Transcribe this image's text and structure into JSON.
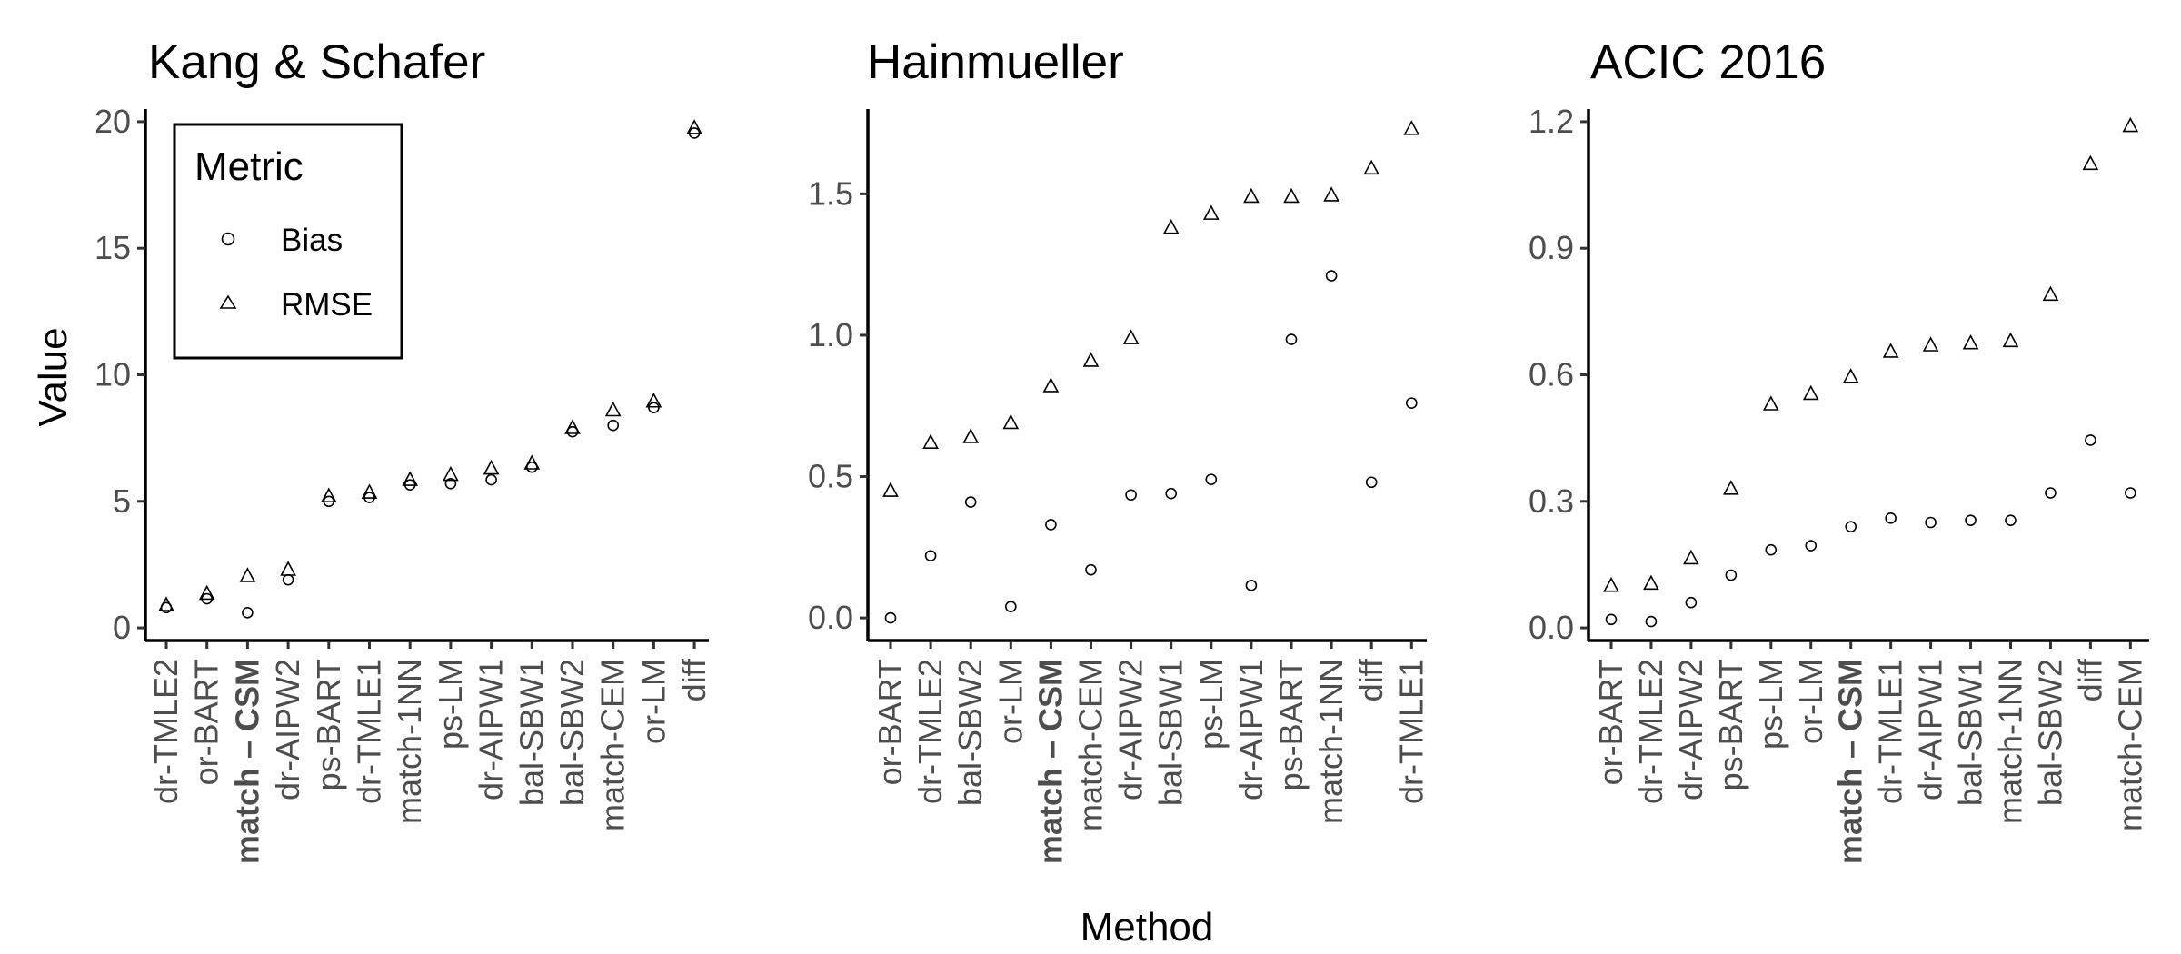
{
  "figure": {
    "xlabel": "Method",
    "ylabel": "Value",
    "legend": {
      "title": "Metric",
      "entries": [
        {
          "label": "Bias",
          "shape": "circle"
        },
        {
          "label": "RMSE",
          "shape": "triangle"
        }
      ],
      "placement": "inside top-left of first panel"
    }
  },
  "chart_data": [
    {
      "type": "scatter",
      "title": "Kang & Schafer",
      "xlabel": "Method",
      "ylabel": "Value",
      "ylim": [
        -0.5,
        20.5
      ],
      "yticks": [
        0,
        5,
        10,
        15,
        20
      ],
      "ytick_labels": [
        "0",
        "5",
        "10",
        "15",
        "20"
      ],
      "grid": false,
      "categories": [
        "dr-TMLE2",
        "or-BART",
        "match – CSM",
        "dr-AIPW2",
        "ps-BART",
        "dr-TMLE1",
        "match-1NN",
        "ps-LM",
        "dr-AIPW1",
        "bal-SBW1",
        "bal-SBW2",
        "match-CEM",
        "or-LM",
        "diff"
      ],
      "bold_categories": [
        "match – CSM"
      ],
      "series": [
        {
          "name": "Bias",
          "marker": "circle",
          "values": [
            0.8,
            1.15,
            0.6,
            1.9,
            5.0,
            5.15,
            5.65,
            5.7,
            5.85,
            6.35,
            7.75,
            8.0,
            8.7,
            19.55
          ]
        },
        {
          "name": "RMSE",
          "marker": "triangle",
          "values": [
            0.9,
            1.35,
            2.05,
            2.3,
            5.2,
            5.35,
            5.85,
            6.05,
            6.3,
            6.5,
            7.9,
            8.6,
            8.95,
            19.75
          ]
        }
      ]
    },
    {
      "type": "scatter",
      "title": "Hainmueller",
      "xlabel": "Method",
      "ylabel": "Value",
      "ylim": [
        -0.08,
        1.8
      ],
      "yticks": [
        0.0,
        0.5,
        1.0,
        1.5
      ],
      "ytick_labels": [
        "0.0",
        "0.5",
        "1.0",
        "1.5"
      ],
      "grid": false,
      "categories": [
        "or-BART",
        "dr-TMLE2",
        "bal-SBW2",
        "or-LM",
        "match – CSM",
        "match-CEM",
        "dr-AIPW2",
        "bal-SBW1",
        "ps-LM",
        "dr-AIPW1",
        "ps-BART",
        "match-1NN",
        "diff",
        "dr-TMLE1"
      ],
      "bold_categories": [
        "match – CSM"
      ],
      "series": [
        {
          "name": "Bias",
          "marker": "circle",
          "values": [
            0.0,
            0.22,
            0.41,
            0.04,
            0.33,
            0.17,
            0.435,
            0.44,
            0.49,
            0.115,
            0.985,
            1.21,
            0.48,
            0.76
          ]
        },
        {
          "name": "RMSE",
          "marker": "triangle",
          "values": [
            0.45,
            0.62,
            0.64,
            0.69,
            0.82,
            0.91,
            0.99,
            1.38,
            1.43,
            1.49,
            1.49,
            1.495,
            1.59,
            1.73
          ]
        }
      ]
    },
    {
      "type": "scatter",
      "title": "ACIC 2016",
      "xlabel": "Method",
      "ylabel": "Value",
      "ylim": [
        -0.03,
        1.23
      ],
      "yticks": [
        0.0,
        0.3,
        0.6,
        0.9,
        1.2
      ],
      "ytick_labels": [
        "0.0",
        "0.3",
        "0.6",
        "0.9",
        "1.2"
      ],
      "grid": false,
      "categories": [
        "or-BART",
        "dr-TMLE2",
        "dr-AIPW2",
        "ps-BART",
        "ps-LM",
        "or-LM",
        "match – CSM",
        "dr-TMLE1",
        "dr-AIPW1",
        "bal-SBW1",
        "match-1NN",
        "bal-SBW2",
        "diff",
        "match-CEM"
      ],
      "bold_categories": [
        "match – CSM"
      ],
      "series": [
        {
          "name": "Bias",
          "marker": "circle",
          "values": [
            0.02,
            0.015,
            0.06,
            0.125,
            0.185,
            0.195,
            0.24,
            0.26,
            0.25,
            0.255,
            0.255,
            0.32,
            0.445,
            0.32
          ]
        },
        {
          "name": "RMSE",
          "marker": "triangle",
          "values": [
            0.1,
            0.105,
            0.165,
            0.33,
            0.53,
            0.555,
            0.595,
            0.655,
            0.67,
            0.675,
            0.68,
            0.79,
            1.1,
            1.19
          ]
        }
      ]
    }
  ]
}
